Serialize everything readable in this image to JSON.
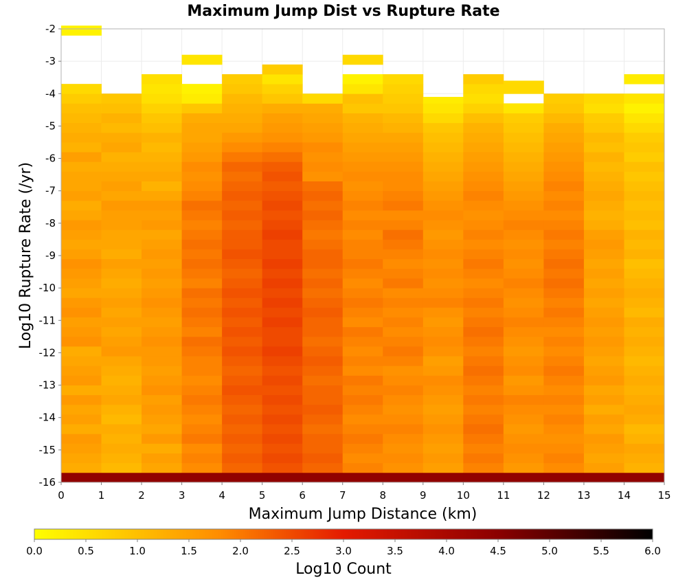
{
  "chart_data": {
    "type": "heatmap",
    "title": "Maximum Jump Dist vs Rupture Rate",
    "xlabel": "Maximum Jump Distance (km)",
    "ylabel": "Log10 Rupture Rate (/yr)",
    "xlim": [
      0,
      15
    ],
    "ylim": [
      -16,
      -2
    ],
    "x_ticks": [
      "0",
      "1",
      "2",
      "3",
      "4",
      "5",
      "6",
      "7",
      "8",
      "9",
      "10",
      "11",
      "12",
      "13",
      "14",
      "15"
    ],
    "y_ticks": [
      "-2",
      "-3",
      "-4",
      "-5",
      "-6",
      "-7",
      "-8",
      "-9",
      "-10",
      "-11",
      "-12",
      "-13",
      "-14",
      "-15",
      "-16"
    ],
    "x_bin_width": 1,
    "y_bin_width": 0.3,
    "y_bin_start": -16,
    "grid": true,
    "colorbar": {
      "label": "Log10 Count",
      "range": [
        0,
        6
      ],
      "ticks": [
        "0.0",
        "0.5",
        "1.0",
        "1.5",
        "2.0",
        "2.5",
        "3.0",
        "3.5",
        "4.0",
        "4.5",
        "5.0",
        "5.5",
        "6.0"
      ],
      "colors": [
        "#ffff00",
        "#ff8c00",
        "#e41a00",
        "#8b0000",
        "#000000"
      ],
      "stops": [
        0,
        1.8,
        3,
        4.5,
        6
      ]
    },
    "columns": [
      {
        "x_center": 0.5,
        "y_top": -3.0,
        "values": [
          4.4,
          1.3,
          1.4,
          1.5,
          1.6,
          1.3,
          1.5,
          1.4,
          1.6,
          1.3,
          1.6,
          1.5,
          1.4,
          1.3,
          1.7,
          1.6,
          1.5,
          1.7,
          1.6,
          1.4,
          1.5,
          1.6,
          1.7,
          1.5,
          1.4,
          1.5,
          1.6,
          1.4,
          1.3,
          1.5,
          1.4,
          1.4,
          1.3,
          1.5,
          1.2,
          1.3,
          1.2,
          1.1,
          1.0,
          0.8,
          0.6,
          null,
          null,
          null,
          null,
          null,
          0.2
        ]
      },
      {
        "x_center": 1.5,
        "y_top": -5.0,
        "values": [
          4.4,
          1.1,
          1.2,
          1.3,
          1.2,
          1.3,
          1.1,
          1.2,
          1.4,
          1.3,
          1.2,
          1.3,
          1.4,
          1.6,
          1.5,
          1.4,
          1.5,
          1.4,
          1.5,
          1.4,
          1.3,
          1.4,
          1.5,
          1.3,
          1.4,
          1.4,
          1.5,
          1.5,
          1.6,
          1.4,
          1.5,
          1.4,
          1.3,
          1.2,
          1.4,
          1.3,
          1.1,
          1.2,
          1.0,
          0.9
        ]
      },
      {
        "x_center": 2.5,
        "y_top": -4.4,
        "values": [
          4.4,
          1.4,
          1.5,
          1.3,
          1.6,
          1.4,
          1.5,
          1.6,
          1.5,
          1.7,
          1.6,
          1.5,
          1.6,
          1.6,
          1.7,
          1.6,
          1.5,
          1.6,
          1.7,
          1.6,
          1.5,
          1.6,
          1.5,
          1.6,
          1.5,
          1.4,
          1.6,
          1.5,
          1.6,
          1.4,
          1.2,
          1.4,
          1.3,
          1.2,
          1.1,
          1.2,
          1.0,
          0.9,
          0.7,
          0.5,
          0.4,
          0.5
        ]
      },
      {
        "x_center": 3.5,
        "y_top": -3.3,
        "values": [
          4.4,
          1.8,
          1.9,
          1.8,
          2.0,
          1.9,
          1.8,
          1.9,
          2.0,
          1.9,
          1.8,
          1.9,
          1.9,
          2.0,
          2.1,
          1.9,
          2.0,
          2.1,
          2.0,
          2.1,
          1.9,
          2.0,
          2.1,
          2.0,
          2.1,
          2.0,
          1.9,
          2.0,
          2.1,
          1.9,
          1.8,
          1.7,
          1.8,
          1.6,
          1.5,
          1.4,
          1.4,
          1.3,
          0.9,
          0.3,
          0.2,
          null,
          null,
          0.4
        ]
      },
      {
        "x_center": 4.5,
        "y_top": -3.8,
        "values": [
          4.4,
          2.2,
          2.3,
          2.2,
          2.3,
          2.2,
          2.3,
          2.2,
          2.3,
          2.4,
          2.3,
          2.2,
          2.3,
          2.4,
          2.3,
          2.4,
          2.3,
          2.4,
          2.3,
          2.4,
          2.3,
          2.2,
          2.3,
          2.4,
          2.3,
          2.3,
          2.2,
          2.3,
          2.2,
          2.3,
          2.2,
          2.1,
          2.2,
          2.0,
          1.8,
          1.6,
          1.4,
          1.3,
          1.2,
          1.1,
          0.9,
          0.8
        ]
      },
      {
        "x_center": 5.5,
        "y_top": -3.6,
        "values": [
          4.4,
          2.4,
          2.5,
          2.4,
          2.5,
          2.4,
          2.5,
          2.4,
          2.5,
          2.4,
          2.5,
          2.4,
          2.5,
          2.6,
          2.5,
          2.5,
          2.6,
          2.5,
          2.6,
          2.5,
          2.6,
          2.5,
          2.6,
          2.5,
          2.5,
          2.6,
          2.5,
          2.4,
          2.5,
          2.4,
          2.3,
          2.4,
          2.3,
          2.1,
          1.9,
          1.7,
          1.6,
          1.5,
          1.3,
          0.9,
          0.7,
          0.4,
          0.8
        ]
      },
      {
        "x_center": 6.5,
        "y_top": -4.4,
        "values": [
          4.4,
          2.2,
          2.3,
          2.2,
          2.2,
          2.1,
          2.2,
          2.3,
          2.2,
          2.2,
          2.1,
          2.2,
          2.3,
          2.2,
          2.1,
          2.2,
          2.2,
          2.3,
          2.2,
          2.1,
          2.2,
          2.1,
          2.2,
          2.2,
          2.1,
          2.0,
          2.1,
          2.2,
          2.1,
          2.2,
          2.1,
          1.7,
          1.8,
          1.7,
          1.8,
          1.6,
          1.5,
          1.4,
          1.3,
          0.6
        ]
      },
      {
        "x_center": 7.5,
        "y_top": -3.3,
        "values": [
          4.4,
          1.9,
          1.8,
          1.9,
          2.0,
          1.9,
          1.8,
          1.9,
          2.0,
          1.9,
          2.0,
          1.8,
          1.9,
          1.8,
          1.9,
          2.0,
          1.8,
          1.9,
          2.0,
          1.9,
          1.8,
          1.9,
          2.0,
          1.9,
          1.9,
          1.8,
          1.9,
          1.8,
          1.9,
          1.8,
          1.7,
          1.8,
          1.7,
          1.6,
          1.5,
          1.4,
          1.3,
          1.2,
          0.9,
          1.0,
          0.4,
          0.2,
          null,
          0.6
        ]
      },
      {
        "x_center": 8.5,
        "y_top": -3.8,
        "values": [
          4.4,
          1.7,
          1.8,
          1.7,
          1.8,
          1.9,
          1.8,
          1.7,
          1.8,
          1.9,
          1.8,
          1.7,
          1.9,
          2.0,
          1.9,
          1.8,
          1.9,
          1.8,
          1.9,
          1.8,
          2.0,
          1.9,
          1.8,
          1.9,
          2.0,
          2.1,
          1.9,
          1.8,
          2.0,
          1.9,
          1.8,
          1.8,
          1.7,
          1.6,
          1.5,
          1.4,
          1.2,
          1.1,
          0.9,
          0.8,
          0.7,
          0.6
        ]
      },
      {
        "x_center": 9.5,
        "y_top": -4.1,
        "values": [
          4.4,
          1.5,
          1.6,
          1.5,
          1.6,
          1.7,
          1.6,
          1.5,
          1.6,
          1.7,
          1.8,
          1.6,
          1.5,
          1.7,
          1.8,
          1.7,
          1.6,
          1.7,
          1.9,
          1.8,
          1.7,
          1.8,
          1.7,
          1.8,
          1.7,
          1.6,
          1.7,
          1.8,
          1.7,
          1.6,
          1.5,
          1.4,
          1.3,
          1.2,
          1.1,
          1.0,
          0.9,
          0.6,
          0.4,
          0.3
        ]
      },
      {
        "x_center": 10.5,
        "y_top": -3.8,
        "values": [
          4.4,
          1.9,
          2.0,
          1.9,
          2.0,
          2.1,
          2.0,
          1.9,
          2.0,
          1.9,
          2.0,
          2.1,
          2.0,
          1.9,
          2.0,
          2.1,
          2.0,
          1.9,
          2.0,
          1.9,
          1.8,
          1.9,
          2.0,
          1.9,
          1.8,
          1.9,
          1.8,
          1.7,
          1.8,
          1.9,
          1.8,
          1.7,
          1.6,
          1.5,
          1.4,
          1.3,
          1.2,
          1.0,
          0.7,
          0.5,
          0.6,
          0.8
        ]
      },
      {
        "x_center": 11.5,
        "y_top": -3.6,
        "values": [
          4.4,
          1.6,
          1.7,
          1.8,
          1.7,
          1.6,
          1.7,
          1.8,
          1.9,
          1.7,
          1.6,
          1.8,
          1.7,
          1.6,
          1.7,
          1.8,
          1.9,
          1.8,
          1.7,
          1.8,
          1.9,
          1.8,
          1.7,
          1.8,
          1.7,
          1.8,
          1.9,
          1.8,
          1.7,
          1.6,
          1.5,
          1.4,
          1.3,
          1.2,
          1.1,
          1.0,
          0.9,
          0.8,
          0.4,
          null,
          0.6
        ]
      },
      {
        "x_center": 12.5,
        "y_top": -4.4,
        "values": [
          4.4,
          1.8,
          1.9,
          1.8,
          1.7,
          1.8,
          1.9,
          1.8,
          1.9,
          1.8,
          1.9,
          2.0,
          1.9,
          1.8,
          1.9,
          1.8,
          1.9,
          2.0,
          1.9,
          2.0,
          2.1,
          2.0,
          2.1,
          2.0,
          1.9,
          2.0,
          1.9,
          1.8,
          1.9,
          1.8,
          1.9,
          1.8,
          1.7,
          1.6,
          1.5,
          1.4,
          1.3,
          1.1,
          0.9,
          0.8
        ]
      },
      {
        "x_center": 13.5,
        "y_top": -4.4,
        "values": [
          4.4,
          1.5,
          1.4,
          1.5,
          1.6,
          1.4,
          1.5,
          1.3,
          1.5,
          1.4,
          1.6,
          1.5,
          1.4,
          1.5,
          1.6,
          1.5,
          1.6,
          1.5,
          1.4,
          1.5,
          1.4,
          1.5,
          1.4,
          1.5,
          1.6,
          1.5,
          1.3,
          1.2,
          1.3,
          1.4,
          1.3,
          1.2,
          1.1,
          1.2,
          1.0,
          1.1,
          0.9,
          0.8,
          0.5,
          0.6
        ]
      },
      {
        "x_center": 14.5,
        "y_top": -3.8,
        "values": [
          4.4,
          1.2,
          1.3,
          1.4,
          1.2,
          1.1,
          1.3,
          1.4,
          1.3,
          1.2,
          1.3,
          1.2,
          1.1,
          1.2,
          1.3,
          1.2,
          1.3,
          1.1,
          1.2,
          1.3,
          1.2,
          1.1,
          1.0,
          1.2,
          1.1,
          1.2,
          1.0,
          1.1,
          1.0,
          1.1,
          1.0,
          0.9,
          1.0,
          0.8,
          0.9,
          0.8,
          0.6,
          0.4,
          0.2,
          0.4,
          null,
          0.3
        ]
      }
    ]
  }
}
